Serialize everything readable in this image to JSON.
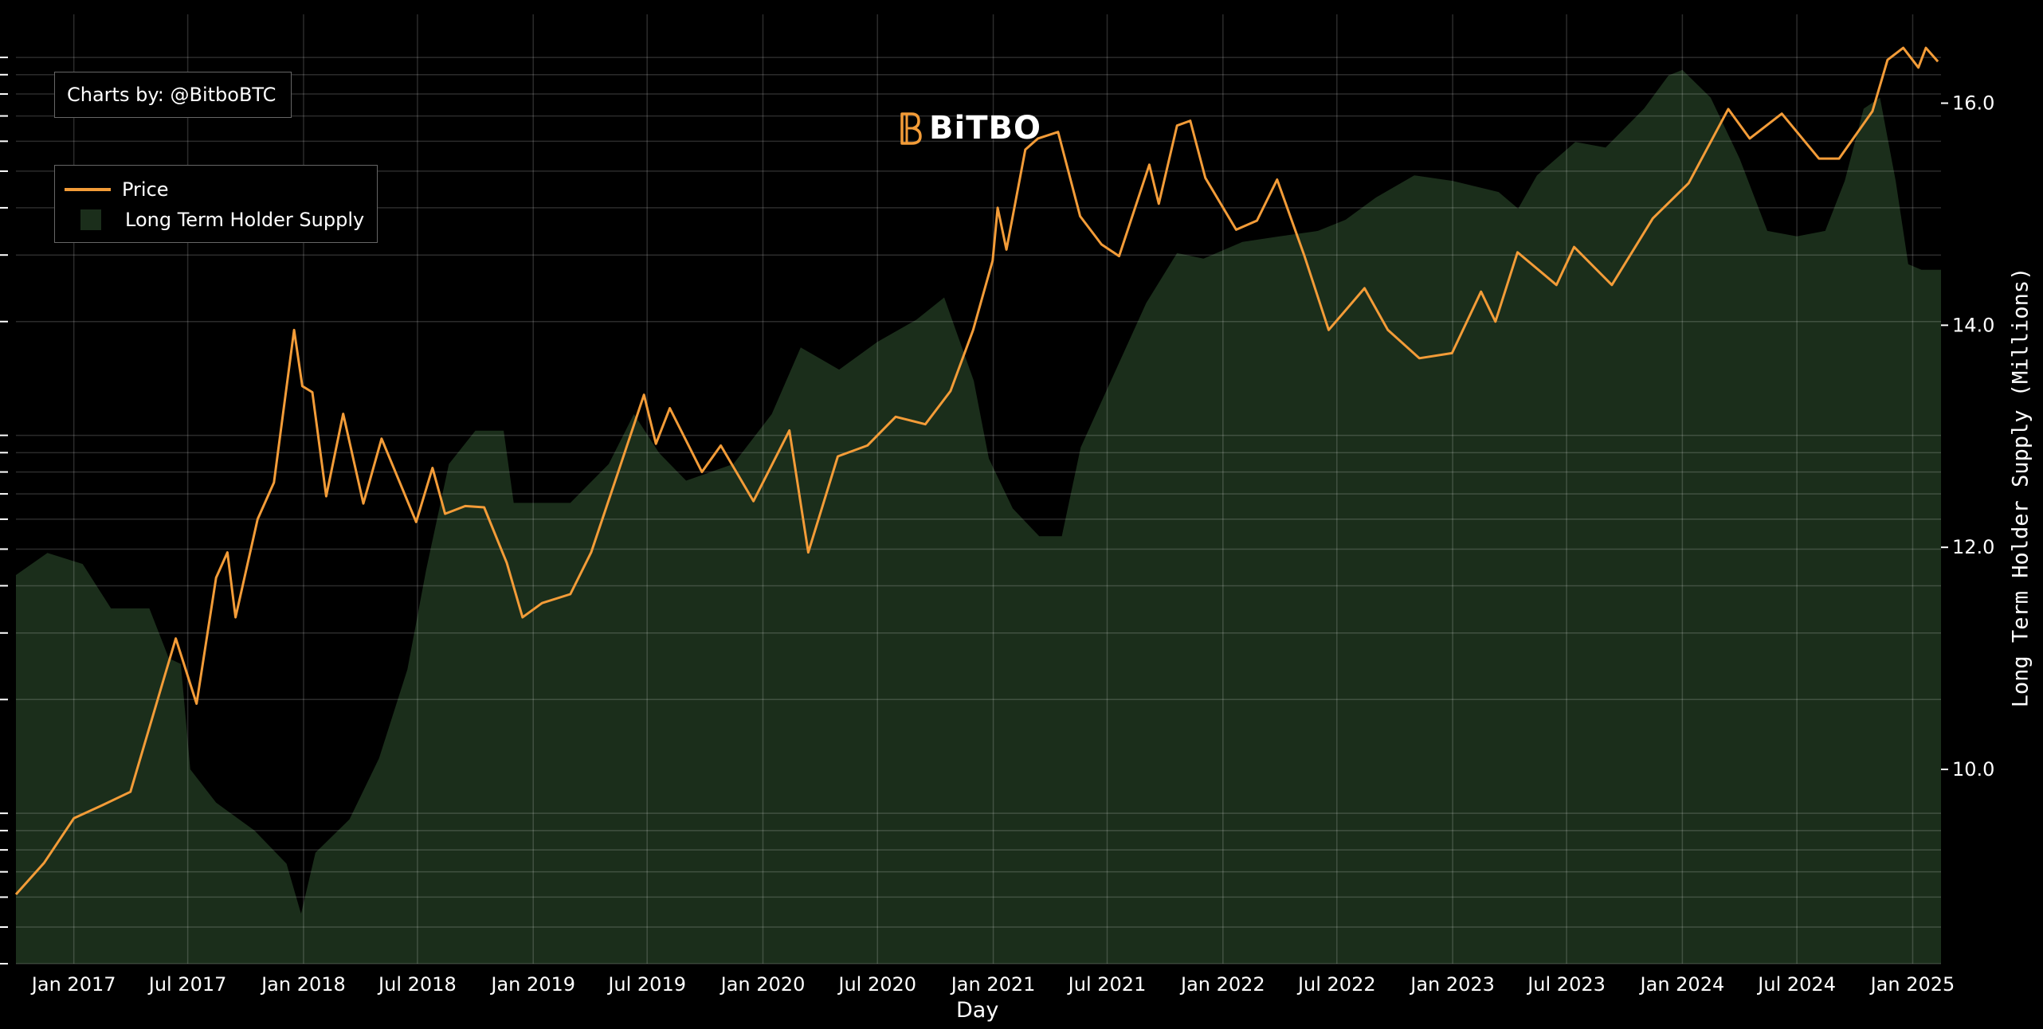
{
  "credit": "Charts by: @BitboBTC",
  "logo_text": "BiTBO",
  "legend": [
    {
      "label": "Price",
      "kind": "line",
      "color": "#f39c38"
    },
    {
      "label": "Long Term Holder Supply",
      "kind": "area",
      "color": "#1b2e1b"
    }
  ],
  "chart_data": {
    "type": "line",
    "xlabel": "Day",
    "ylabel_right": "Long Term Holder Supply (Millions)",
    "x_range": [
      "2016-10-01",
      "2025-02-15"
    ],
    "x_ticks": [
      "Jan 2017",
      "Jul 2017",
      "Jan 2018",
      "Jul 2018",
      "Jan 2019",
      "Jul 2019",
      "Jan 2020",
      "Jul 2020",
      "Jan 2021",
      "Jul 2021",
      "Jan 2022",
      "Jul 2022",
      "Jan 2023",
      "Jul 2023",
      "Jan 2024",
      "Jul 2024",
      "Jan 2025"
    ],
    "y_right_ticks": [
      "10.0",
      "12.0",
      "14.0",
      "16.0"
    ],
    "y_right_range": [
      8.25,
      16.8
    ],
    "price_axis": "log",
    "price_range": [
      400,
      130000
    ],
    "grid": true,
    "legend_position": "top-left",
    "series": [
      {
        "name": "Price",
        "color": "#f39c38",
        "points": [
          [
            "2016-10-01",
            610
          ],
          [
            "2016-11-15",
            740
          ],
          [
            "2017-01-01",
            970
          ],
          [
            "2017-02-15",
            1050
          ],
          [
            "2017-04-01",
            1140
          ],
          [
            "2017-05-25",
            2300
          ],
          [
            "2017-06-12",
            2900
          ],
          [
            "2017-07-15",
            1950
          ],
          [
            "2017-08-15",
            4200
          ],
          [
            "2017-09-02",
            4900
          ],
          [
            "2017-09-15",
            3300
          ],
          [
            "2017-10-20",
            6000
          ],
          [
            "2017-11-15",
            7500
          ],
          [
            "2017-12-17",
            19000
          ],
          [
            "2017-12-30",
            13500
          ],
          [
            "2018-01-15",
            13000
          ],
          [
            "2018-02-06",
            6900
          ],
          [
            "2018-03-05",
            11400
          ],
          [
            "2018-04-06",
            6600
          ],
          [
            "2018-05-05",
            9800
          ],
          [
            "2018-06-29",
            5900
          ],
          [
            "2018-07-25",
            8200
          ],
          [
            "2018-08-14",
            6200
          ],
          [
            "2018-09-15",
            6500
          ],
          [
            "2018-10-15",
            6450
          ],
          [
            "2018-11-20",
            4600
          ],
          [
            "2018-12-15",
            3300
          ],
          [
            "2019-01-15",
            3600
          ],
          [
            "2019-03-01",
            3800
          ],
          [
            "2019-04-03",
            4900
          ],
          [
            "2019-05-15",
            7900
          ],
          [
            "2019-06-26",
            12800
          ],
          [
            "2019-07-15",
            9500
          ],
          [
            "2019-08-06",
            11800
          ],
          [
            "2019-09-26",
            8000
          ],
          [
            "2019-10-26",
            9400
          ],
          [
            "2019-12-17",
            6700
          ],
          [
            "2020-02-12",
            10300
          ],
          [
            "2020-03-13",
            4900
          ],
          [
            "2020-04-29",
            8800
          ],
          [
            "2020-06-15",
            9400
          ],
          [
            "2020-07-30",
            11200
          ],
          [
            "2020-09-15",
            10700
          ],
          [
            "2020-10-25",
            13100
          ],
          [
            "2020-11-30",
            19000
          ],
          [
            "2020-12-31",
            29000
          ],
          [
            "2021-01-08",
            40000
          ],
          [
            "2021-01-22",
            31000
          ],
          [
            "2021-02-21",
            57000
          ],
          [
            "2021-03-13",
            61000
          ],
          [
            "2021-04-14",
            63500
          ],
          [
            "2021-05-19",
            38000
          ],
          [
            "2021-06-22",
            32000
          ],
          [
            "2021-07-20",
            29800
          ],
          [
            "2021-09-06",
            52000
          ],
          [
            "2021-09-21",
            41000
          ],
          [
            "2021-10-20",
            66000
          ],
          [
            "2021-11-10",
            68000
          ],
          [
            "2021-12-04",
            48000
          ],
          [
            "2022-01-22",
            35000
          ],
          [
            "2022-02-24",
            37000
          ],
          [
            "2022-03-28",
            47500
          ],
          [
            "2022-05-10",
            30000
          ],
          [
            "2022-06-18",
            19000
          ],
          [
            "2022-08-14",
            24500
          ],
          [
            "2022-09-20",
            19000
          ],
          [
            "2022-11-09",
            16000
          ],
          [
            "2022-12-31",
            16500
          ],
          [
            "2023-02-15",
            24000
          ],
          [
            "2023-03-10",
            20000
          ],
          [
            "2023-04-14",
            30500
          ],
          [
            "2023-06-15",
            25000
          ],
          [
            "2023-07-13",
            31500
          ],
          [
            "2023-09-11",
            25000
          ],
          [
            "2023-11-15",
            37500
          ],
          [
            "2024-01-11",
            46500
          ],
          [
            "2024-03-14",
            73000
          ],
          [
            "2024-04-17",
            61000
          ],
          [
            "2024-06-07",
            71000
          ],
          [
            "2024-08-05",
            54000
          ],
          [
            "2024-09-06",
            54000
          ],
          [
            "2024-10-29",
            72000
          ],
          [
            "2024-11-22",
            98500
          ],
          [
            "2024-12-17",
            106000
          ],
          [
            "2025-01-10",
            94000
          ],
          [
            "2025-01-22",
            106000
          ],
          [
            "2025-02-10",
            97500
          ]
        ]
      },
      {
        "name": "Long Term Holder Supply",
        "color": "#1b2e1b",
        "points": [
          [
            "2016-10-01",
            11.75
          ],
          [
            "2016-11-20",
            11.95
          ],
          [
            "2017-01-15",
            11.85
          ],
          [
            "2017-03-01",
            11.45
          ],
          [
            "2017-05-01",
            11.45
          ],
          [
            "2017-06-01",
            11.0
          ],
          [
            "2017-06-20",
            10.95
          ],
          [
            "2017-07-05",
            10.0
          ],
          [
            "2017-08-15",
            9.7
          ],
          [
            "2017-10-15",
            9.45
          ],
          [
            "2017-12-05",
            9.15
          ],
          [
            "2017-12-28",
            8.7
          ],
          [
            "2018-01-20",
            9.25
          ],
          [
            "2018-03-15",
            9.55
          ],
          [
            "2018-05-01",
            10.1
          ],
          [
            "2018-06-15",
            10.9
          ],
          [
            "2018-07-15",
            11.8
          ],
          [
            "2018-08-20",
            12.75
          ],
          [
            "2018-10-01",
            13.05
          ],
          [
            "2018-11-15",
            13.05
          ],
          [
            "2018-12-01",
            12.4
          ],
          [
            "2019-01-20",
            12.4
          ],
          [
            "2019-03-01",
            12.4
          ],
          [
            "2019-05-01",
            12.75
          ],
          [
            "2019-06-10",
            13.2
          ],
          [
            "2019-07-20",
            12.85
          ],
          [
            "2019-09-01",
            12.6
          ],
          [
            "2019-11-15",
            12.75
          ],
          [
            "2020-01-15",
            13.2
          ],
          [
            "2020-03-01",
            13.8
          ],
          [
            "2020-05-01",
            13.6
          ],
          [
            "2020-07-01",
            13.85
          ],
          [
            "2020-09-01",
            14.05
          ],
          [
            "2020-10-15",
            14.25
          ],
          [
            "2020-12-01",
            13.5
          ],
          [
            "2020-12-25",
            12.8
          ],
          [
            "2021-02-01",
            12.35
          ],
          [
            "2021-03-15",
            12.1
          ],
          [
            "2021-04-20",
            12.1
          ],
          [
            "2021-05-20",
            12.9
          ],
          [
            "2021-07-15",
            13.6
          ],
          [
            "2021-09-01",
            14.2
          ],
          [
            "2021-10-20",
            14.65
          ],
          [
            "2021-12-01",
            14.6
          ],
          [
            "2022-02-01",
            14.75
          ],
          [
            "2022-04-01",
            14.8
          ],
          [
            "2022-06-01",
            14.85
          ],
          [
            "2022-07-15",
            14.95
          ],
          [
            "2022-09-01",
            15.15
          ],
          [
            "2022-11-01",
            15.35
          ],
          [
            "2023-01-01",
            15.3
          ],
          [
            "2023-03-15",
            15.2
          ],
          [
            "2023-04-15",
            15.05
          ],
          [
            "2023-05-15",
            15.35
          ],
          [
            "2023-07-15",
            15.65
          ],
          [
            "2023-09-01",
            15.6
          ],
          [
            "2023-11-01",
            15.95
          ],
          [
            "2023-12-10",
            16.25
          ],
          [
            "2024-01-01",
            16.3
          ],
          [
            "2024-02-15",
            16.05
          ],
          [
            "2024-04-01",
            15.5
          ],
          [
            "2024-05-15",
            14.85
          ],
          [
            "2024-07-01",
            14.8
          ],
          [
            "2024-08-15",
            14.85
          ],
          [
            "2024-09-15",
            15.3
          ],
          [
            "2024-10-15",
            15.95
          ],
          [
            "2024-11-10",
            16.05
          ],
          [
            "2024-12-05",
            15.3
          ],
          [
            "2024-12-25",
            14.55
          ],
          [
            "2025-01-15",
            14.5
          ],
          [
            "2025-02-15",
            14.5
          ]
        ]
      }
    ]
  }
}
